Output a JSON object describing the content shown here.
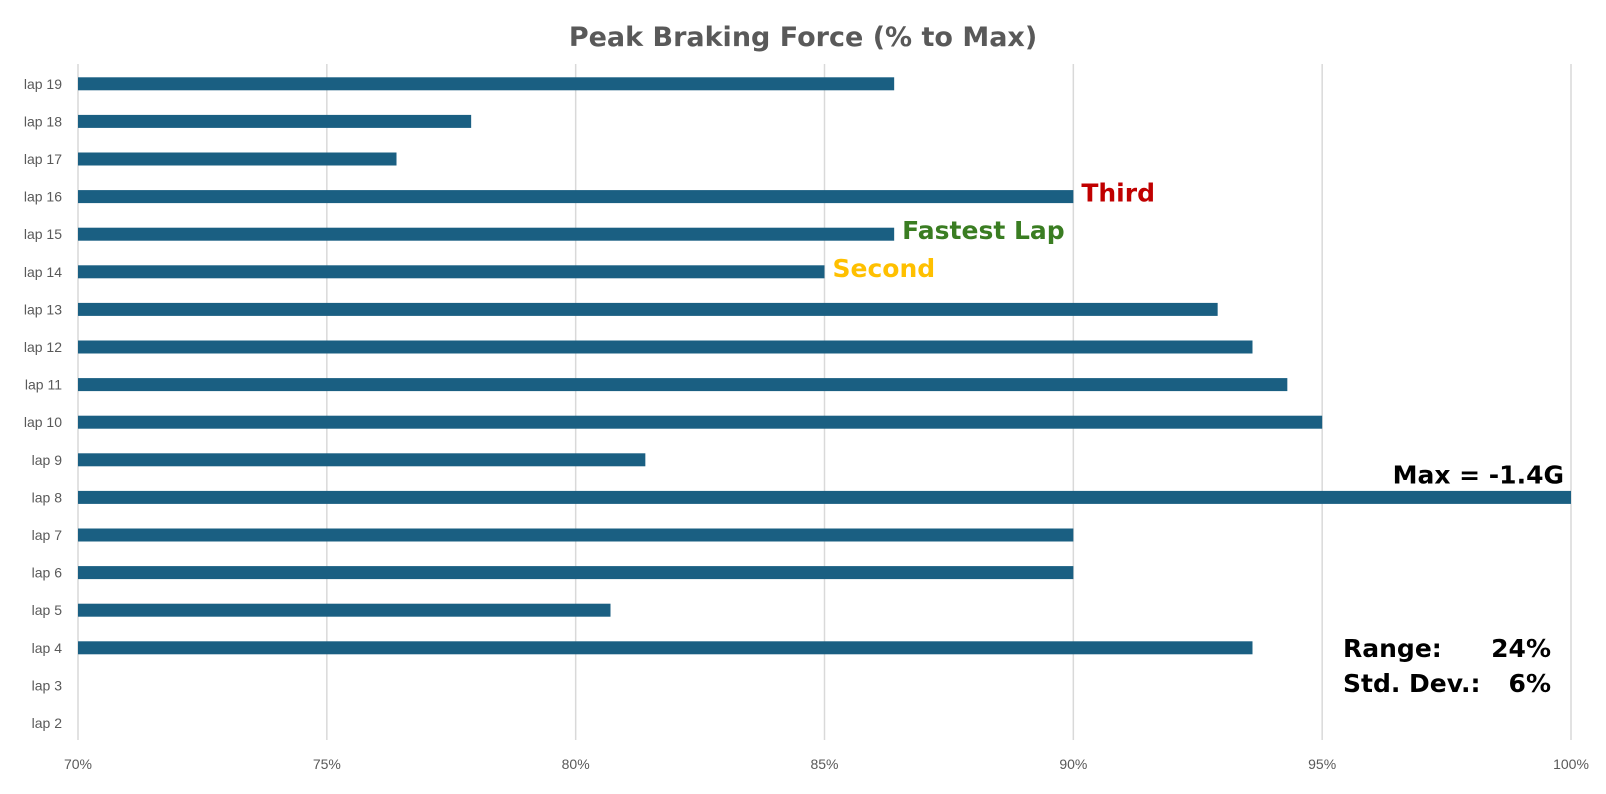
{
  "chart_data": {
    "type": "bar",
    "orientation": "horizontal",
    "title": "Peak Braking Force (% to Max)",
    "xlabel": "",
    "ylabel": "",
    "xlim": [
      70,
      100
    ],
    "x_ticks": [
      70,
      75,
      80,
      85,
      90,
      95,
      100
    ],
    "x_tick_labels": [
      "70%",
      "75%",
      "80%",
      "85%",
      "90%",
      "95%",
      "100%"
    ],
    "grid": "vertical",
    "legend": "none",
    "bar_color": "#1a5f82",
    "categories": [
      "lap 19",
      "lap 18",
      "lap 17",
      "lap 16",
      "lap 15",
      "lap 14",
      "lap 13",
      "lap 12",
      "lap 11",
      "lap 10",
      "lap 9",
      "lap 8",
      "lap 7",
      "lap 6",
      "lap 5",
      "lap 4",
      "lap 3",
      "lap 2"
    ],
    "values": [
      86.4,
      77.9,
      76.4,
      90.0,
      86.4,
      85.0,
      92.9,
      93.6,
      94.3,
      95.0,
      81.4,
      100.0,
      90.0,
      90.0,
      80.7,
      93.6,
      null,
      null
    ],
    "annotations": [
      {
        "category": "lap 16",
        "text": "Third",
        "color": "#c00000"
      },
      {
        "category": "lap 15",
        "text": "Fastest Lap",
        "color": "#3a7d22"
      },
      {
        "category": "lap 14",
        "text": "Second",
        "color": "#ffc000"
      },
      {
        "category": "lap 8",
        "text": "Max = -1.4G",
        "color": "#000000"
      }
    ],
    "stats": [
      {
        "label": "Range:",
        "value": "24%"
      },
      {
        "label": "Std. Dev.:",
        "value": "6%"
      }
    ]
  }
}
